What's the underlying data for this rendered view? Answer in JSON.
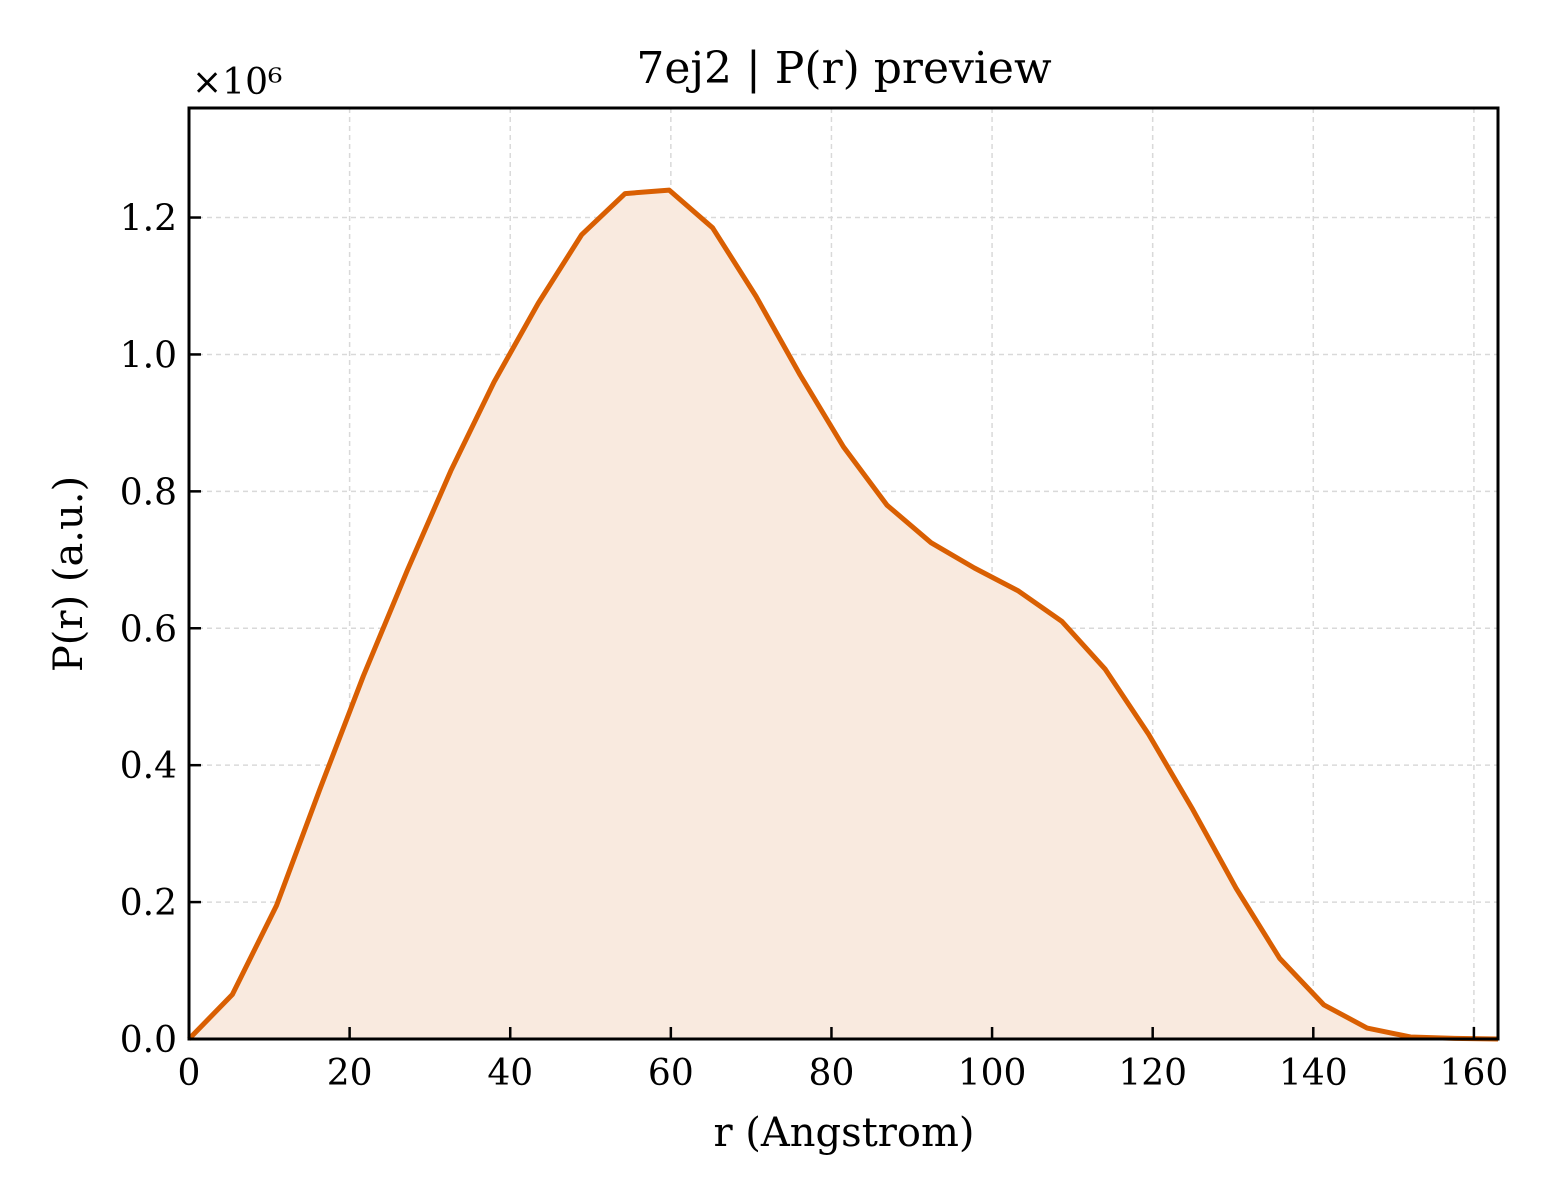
{
  "chart_data": {
    "type": "area",
    "title": "7ej2 | P(r) preview",
    "xlabel": "r (Angstrom)",
    "ylabel": "P(r) (a.u.)",
    "y_offset_label": "×10⁶",
    "xlim": [
      0,
      163
    ],
    "ylim": [
      0,
      1.36
    ],
    "x_ticks": [
      0,
      20,
      40,
      60,
      80,
      100,
      120,
      140,
      160
    ],
    "x_tick_labels": [
      "0",
      "20",
      "40",
      "60",
      "80",
      "100",
      "120",
      "140",
      "160"
    ],
    "y_ticks": [
      0.0,
      0.2,
      0.4,
      0.6,
      0.8,
      1.0,
      1.2
    ],
    "y_tick_labels": [
      "0.0",
      "0.2",
      "0.4",
      "0.6",
      "0.8",
      "1.0",
      "1.2"
    ],
    "grid": true,
    "line_color": "#d95f02",
    "fill_color": "#f9eadf",
    "x": [
      0,
      5.4,
      10.9,
      16.3,
      21.7,
      27.2,
      32.6,
      38.0,
      43.5,
      48.9,
      54.3,
      59.8,
      65.2,
      70.6,
      76.1,
      81.5,
      86.9,
      92.4,
      97.8,
      103.2,
      108.7,
      114.1,
      119.5,
      125.0,
      130.4,
      135.8,
      141.3,
      146.7,
      152.1,
      157.6,
      163.0
    ],
    "y": [
      0.0,
      0.065,
      0.195,
      0.365,
      0.53,
      0.685,
      0.83,
      0.96,
      1.075,
      1.175,
      1.235,
      1.24,
      1.185,
      1.085,
      0.97,
      0.865,
      0.78,
      0.725,
      0.688,
      0.655,
      0.61,
      0.54,
      0.445,
      0.335,
      0.22,
      0.118,
      0.05,
      0.016,
      0.003,
      0.001,
      0.0
    ]
  }
}
